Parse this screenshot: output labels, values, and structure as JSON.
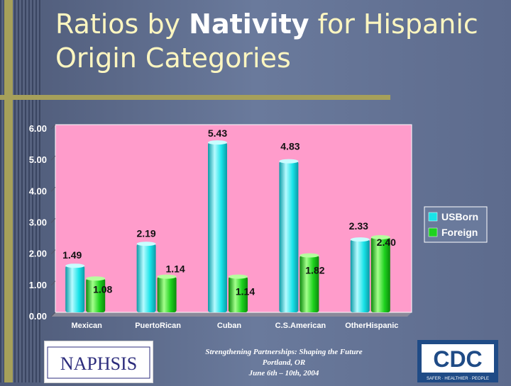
{
  "slide": {
    "title_part1": "Ratios by ",
    "title_bold": "Nativity",
    "title_part2": " for Hispanic Origin Categories"
  },
  "chart_data": {
    "type": "bar",
    "categories": [
      "Mexican",
      "PuertoRican",
      "Cuban",
      "C.S.American",
      "OtherHispanic"
    ],
    "series": [
      {
        "name": "USBorn",
        "values": [
          1.49,
          2.19,
          5.43,
          4.83,
          2.33
        ],
        "labels": [
          "1.49",
          "2.19",
          "5.43",
          "4.83",
          "2.33"
        ],
        "color": "#19e3e8"
      },
      {
        "name": "Foreign",
        "values": [
          1.08,
          1.14,
          1.14,
          1.82,
          2.4
        ],
        "labels": [
          "1.08",
          "1.14",
          "1.14",
          "1.82",
          "2.40"
        ],
        "color": "#1ed21e"
      }
    ],
    "y_ticks": [
      "0.00",
      "1.00",
      "2.00",
      "3.00",
      "4.00",
      "5.00",
      "6.00"
    ],
    "ylim": [
      0,
      6
    ],
    "plot_background": "#ff9ccb",
    "legend_position": "right"
  },
  "footer": {
    "left_logo_text": "NAPHSIS",
    "line1": "Strengthening Partnerships: Shaping the Future",
    "line2": "Portland, OR",
    "line3": "June 6th – 10th, 2004",
    "right_logo_text": "CDC",
    "right_logo_tagline": "SAFER · HEALTHIER · PEOPLE"
  }
}
